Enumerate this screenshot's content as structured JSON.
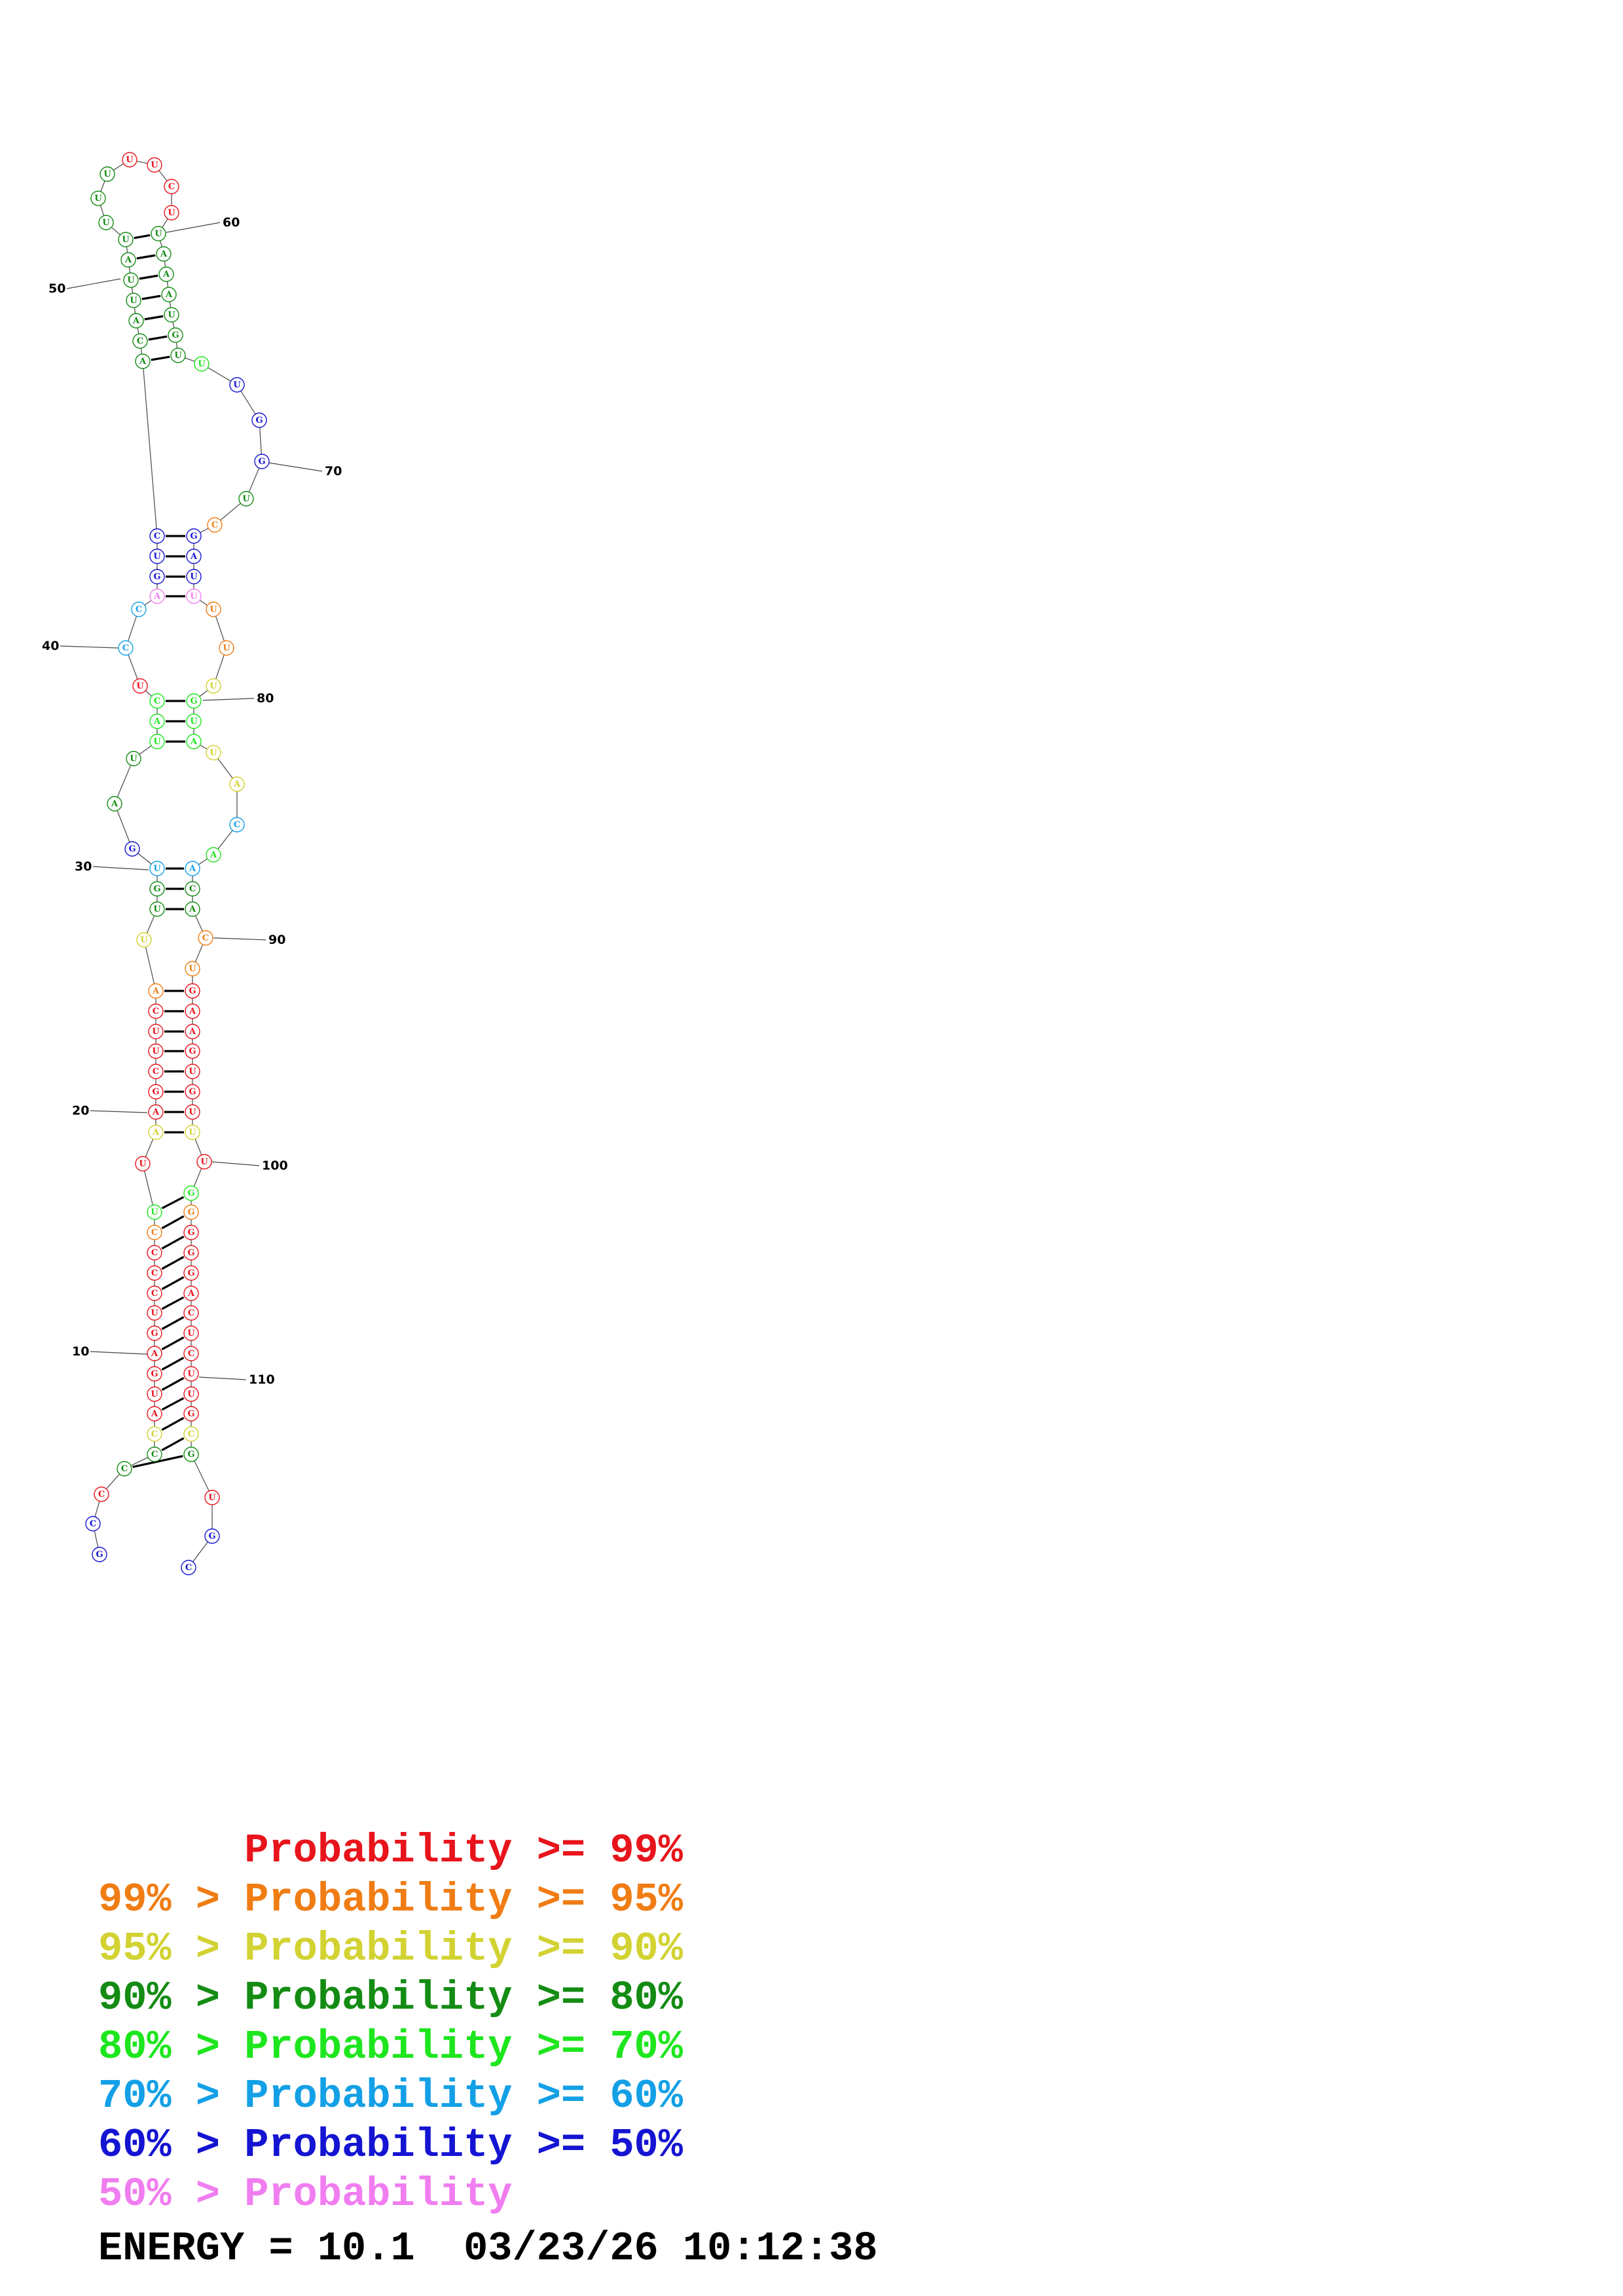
{
  "colors": {
    "p99": "#e8141c",
    "p95": "#f07d14",
    "p90": "#d2d232",
    "p80": "#148c14",
    "p70": "#1ee61e",
    "p60": "#14a0e6",
    "p50": "#1414d2",
    "plow": "#f07ef0"
  },
  "structure": {
    "sequence": [
      {
        "n": 1,
        "b": "G",
        "c": "p50"
      },
      {
        "n": 2,
        "b": "C",
        "c": "p50"
      },
      {
        "n": 3,
        "b": "C",
        "c": "p99"
      },
      {
        "n": 4,
        "b": "C",
        "c": "p80"
      },
      {
        "n": 5,
        "b": "C",
        "c": "p80"
      },
      {
        "n": 6,
        "b": "C",
        "c": "p90"
      },
      {
        "n": 7,
        "b": "A",
        "c": "p99"
      },
      {
        "n": 8,
        "b": "U",
        "c": "p99"
      },
      {
        "n": 9,
        "b": "G",
        "c": "p99"
      },
      {
        "n": 10,
        "b": "A",
        "c": "p99"
      },
      {
        "n": 11,
        "b": "G",
        "c": "p99"
      },
      {
        "n": 12,
        "b": "U",
        "c": "p99"
      },
      {
        "n": 13,
        "b": "C",
        "c": "p99"
      },
      {
        "n": 14,
        "b": "C",
        "c": "p99"
      },
      {
        "n": 15,
        "b": "C",
        "c": "p99"
      },
      {
        "n": 16,
        "b": "C",
        "c": "p95"
      },
      {
        "n": 17,
        "b": "U",
        "c": "p70"
      },
      {
        "n": 18,
        "b": "U",
        "c": "p99"
      },
      {
        "n": 19,
        "b": "A",
        "c": "p90"
      },
      {
        "n": 20,
        "b": "A",
        "c": "p99"
      },
      {
        "n": 21,
        "b": "G",
        "c": "p99"
      },
      {
        "n": 22,
        "b": "C",
        "c": "p99"
      },
      {
        "n": 23,
        "b": "U",
        "c": "p99"
      },
      {
        "n": 24,
        "b": "U",
        "c": "p99"
      },
      {
        "n": 25,
        "b": "C",
        "c": "p99"
      },
      {
        "n": 26,
        "b": "A",
        "c": "p95"
      },
      {
        "n": 27,
        "b": "U",
        "c": "p90"
      },
      {
        "n": 28,
        "b": "U",
        "c": "p80"
      },
      {
        "n": 29,
        "b": "G",
        "c": "p80"
      },
      {
        "n": 30,
        "b": "U",
        "c": "p60"
      },
      {
        "n": 31,
        "b": "G",
        "c": "p50"
      },
      {
        "n": 32,
        "b": "A",
        "c": "p80"
      },
      {
        "n": 33,
        "b": "U",
        "c": "p80"
      },
      {
        "n": 34,
        "b": "U",
        "c": "p70"
      },
      {
        "n": 35,
        "b": "A",
        "c": "p70"
      },
      {
        "n": 36,
        "b": "C",
        "c": "p70"
      },
      {
        "n": 37,
        "b": "U",
        "c": "p99"
      },
      {
        "n": 38,
        "b": "C",
        "c": "p60"
      },
      {
        "n": 39,
        "b": "C",
        "c": "p60"
      },
      {
        "n": 40,
        "b": "A",
        "c": "plow"
      },
      {
        "n": 41,
        "b": "G",
        "c": "p50"
      },
      {
        "n": 42,
        "b": "U",
        "c": "p50"
      },
      {
        "n": 43,
        "b": "C",
        "c": "p50"
      },
      {
        "n": 44,
        "b": "A",
        "c": "p80"
      },
      {
        "n": 45,
        "b": "C",
        "c": "p80"
      },
      {
        "n": 46,
        "b": "A",
        "c": "p80"
      },
      {
        "n": 47,
        "b": "U",
        "c": "p80"
      },
      {
        "n": 48,
        "b": "U",
        "c": "p80"
      },
      {
        "n": 49,
        "b": "A",
        "c": "p80"
      },
      {
        "n": 50,
        "b": "U",
        "c": "p80"
      },
      {
        "n": 51,
        "b": "U",
        "c": "p80"
      },
      {
        "n": 52,
        "b": "U",
        "c": "p80"
      },
      {
        "n": 53,
        "b": "U",
        "c": "p80"
      },
      {
        "n": 54,
        "b": "U",
        "c": "p99"
      },
      {
        "n": 55,
        "b": "U",
        "c": "p99"
      },
      {
        "n": 56,
        "b": "C",
        "c": "p99"
      },
      {
        "n": 57,
        "b": "U",
        "c": "p99"
      },
      {
        "n": 58,
        "b": "U",
        "c": "p80"
      },
      {
        "n": 59,
        "b": "A",
        "c": "p80"
      },
      {
        "n": 60,
        "b": "A",
        "c": "p80"
      },
      {
        "n": 61,
        "b": "A",
        "c": "p80"
      },
      {
        "n": 62,
        "b": "U",
        "c": "p80"
      },
      {
        "n": 63,
        "b": "G",
        "c": "p80"
      },
      {
        "n": 64,
        "b": "U",
        "c": "p80"
      },
      {
        "n": 65,
        "b": "U",
        "c": "p70"
      },
      {
        "n": 66,
        "b": "U",
        "c": "p50"
      },
      {
        "n": 67,
        "b": "G",
        "c": "p50"
      },
      {
        "n": 68,
        "b": "G",
        "c": "p50"
      },
      {
        "n": 69,
        "b": "U",
        "c": "p80"
      },
      {
        "n": 70,
        "b": "C",
        "c": "p95"
      },
      {
        "n": 71,
        "b": "G",
        "c": "p50"
      },
      {
        "n": 72,
        "b": "A",
        "c": "p50"
      },
      {
        "n": 73,
        "b": "U",
        "c": "p50"
      },
      {
        "n": 74,
        "b": "U",
        "c": "plow"
      },
      {
        "n": 75,
        "b": "U",
        "c": "p95"
      },
      {
        "n": 76,
        "b": "U",
        "c": "p95"
      },
      {
        "n": 77,
        "b": "U",
        "c": "p90"
      },
      {
        "n": 78,
        "b": "G",
        "c": "p70"
      },
      {
        "n": 79,
        "b": "U",
        "c": "p70"
      },
      {
        "n": 80,
        "b": "A",
        "c": "p70"
      },
      {
        "n": 81,
        "b": "U",
        "c": "p90"
      },
      {
        "n": 82,
        "b": "A",
        "c": "p90"
      },
      {
        "n": 83,
        "b": "C",
        "c": "p60"
      },
      {
        "n": 84,
        "b": "A",
        "c": "p70"
      },
      {
        "n": 85,
        "b": "A",
        "c": "p60"
      },
      {
        "n": 86,
        "b": "C",
        "c": "p80"
      },
      {
        "n": 87,
        "b": "A",
        "c": "p80"
      },
      {
        "n": 88,
        "b": "C",
        "c": "p95"
      },
      {
        "n": 89,
        "b": "U",
        "c": "p95"
      },
      {
        "n": 90,
        "b": "G",
        "c": "p99"
      },
      {
        "n": 91,
        "b": "A",
        "c": "p99"
      },
      {
        "n": 92,
        "b": "A",
        "c": "p99"
      },
      {
        "n": 93,
        "b": "G",
        "c": "p99"
      },
      {
        "n": 94,
        "b": "U",
        "c": "p99"
      },
      {
        "n": 95,
        "b": "G",
        "c": "p99"
      },
      {
        "n": 96,
        "b": "U",
        "c": "p99"
      },
      {
        "n": 97,
        "b": "U",
        "c": "p90"
      },
      {
        "n": 98,
        "b": "U",
        "c": "p99"
      },
      {
        "n": 99,
        "b": "G",
        "c": "p70"
      },
      {
        "n": 100,
        "b": "G",
        "c": "p95"
      },
      {
        "n": 101,
        "b": "G",
        "c": "p99"
      },
      {
        "n": 102,
        "b": "G",
        "c": "p99"
      },
      {
        "n": 103,
        "b": "G",
        "c": "p99"
      },
      {
        "n": 104,
        "b": "A",
        "c": "p99"
      },
      {
        "n": 105,
        "b": "C",
        "c": "p99"
      },
      {
        "n": 106,
        "b": "U",
        "c": "p99"
      },
      {
        "n": 107,
        "b": "C",
        "c": "p99"
      },
      {
        "n": 108,
        "b": "U",
        "c": "p99"
      },
      {
        "n": 109,
        "b": "U",
        "c": "p99"
      },
      {
        "n": 110,
        "b": "G",
        "c": "p99"
      },
      {
        "n": 111,
        "b": "C",
        "c": "p90"
      },
      {
        "n": 112,
        "b": "G",
        "c": "p80"
      },
      {
        "n": 113,
        "b": "U",
        "c": "p99"
      },
      {
        "n": 114,
        "b": "G",
        "c": "p50"
      },
      {
        "n": 115,
        "b": "C",
        "c": "p50"
      }
    ],
    "pairs": [
      [
        4,
        112
      ],
      [
        5,
        111
      ],
      [
        6,
        110
      ],
      [
        7,
        109
      ],
      [
        8,
        108
      ],
      [
        9,
        107
      ],
      [
        10,
        106
      ],
      [
        11,
        105
      ],
      [
        12,
        104
      ],
      [
        13,
        103
      ],
      [
        14,
        102
      ],
      [
        15,
        101
      ],
      [
        16,
        100
      ],
      [
        17,
        99
      ],
      [
        19,
        97
      ],
      [
        20,
        96
      ],
      [
        21,
        95
      ],
      [
        22,
        94
      ],
      [
        23,
        93
      ],
      [
        24,
        92
      ],
      [
        25,
        91
      ],
      [
        26,
        90
      ],
      [
        28,
        87
      ],
      [
        29,
        86
      ],
      [
        30,
        85
      ],
      [
        34,
        80
      ],
      [
        35,
        79
      ],
      [
        36,
        78
      ],
      [
        40,
        74
      ],
      [
        41,
        73
      ],
      [
        42,
        72
      ],
      [
        43,
        71
      ],
      [
        44,
        64
      ],
      [
        45,
        63
      ],
      [
        46,
        62
      ],
      [
        47,
        61
      ],
      [
        48,
        60
      ],
      [
        49,
        59
      ],
      [
        50,
        58
      ]
    ],
    "position_labels": [
      "10",
      "20",
      "30",
      "40",
      "50",
      "60",
      "70",
      "80",
      "90",
      "100",
      "110"
    ]
  },
  "legend": [
    {
      "prefix": "",
      "text": "Probability >= 99%",
      "c": "p99"
    },
    {
      "prefix": "99% > ",
      "text": "Probability >= 95%",
      "c": "p95"
    },
    {
      "prefix": "95% > ",
      "text": "Probability >= 90%",
      "c": "p90"
    },
    {
      "prefix": "90% > ",
      "text": "Probability >= 80%",
      "c": "p80"
    },
    {
      "prefix": "80% > ",
      "text": "Probability >= 70%",
      "c": "p70"
    },
    {
      "prefix": "70% > ",
      "text": "Probability >= 60%",
      "c": "p60"
    },
    {
      "prefix": "60% > ",
      "text": "Probability >= 50%",
      "c": "p50"
    },
    {
      "prefix": "50% > ",
      "text": "Probability",
      "c": "plow"
    }
  ],
  "energy_text": "ENERGY = 10.1  03/23/26 10:12:38"
}
